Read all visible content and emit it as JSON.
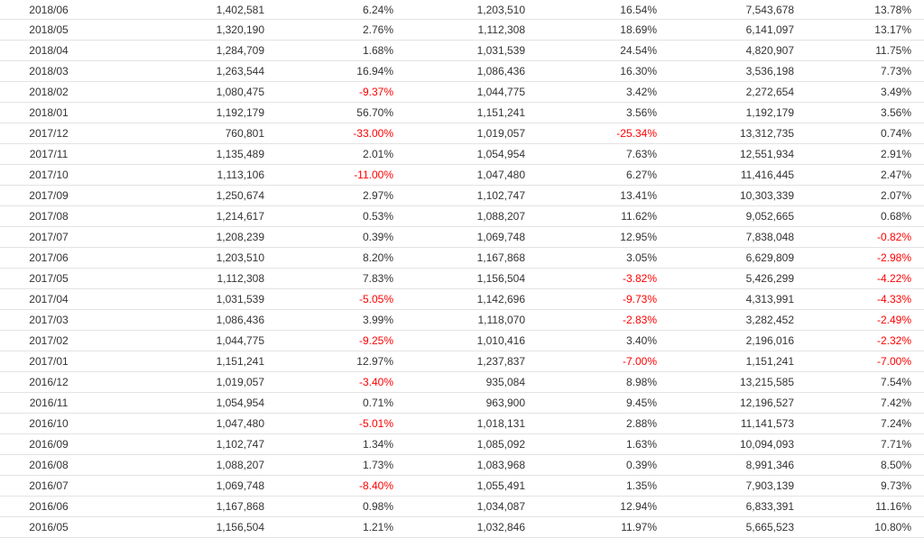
{
  "colors": {
    "negative": "#ff0000",
    "text": "#333333",
    "row_border": "#e3e3e3"
  },
  "table": {
    "rows": [
      [
        "2018/06",
        "1,402,581",
        "6.24%",
        "1,203,510",
        "16.54%",
        "7,543,678",
        "13.78%"
      ],
      [
        "2018/05",
        "1,320,190",
        "2.76%",
        "1,112,308",
        "18.69%",
        "6,141,097",
        "13.17%"
      ],
      [
        "2018/04",
        "1,284,709",
        "1.68%",
        "1,031,539",
        "24.54%",
        "4,820,907",
        "11.75%"
      ],
      [
        "2018/03",
        "1,263,544",
        "16.94%",
        "1,086,436",
        "16.30%",
        "3,536,198",
        "7.73%"
      ],
      [
        "2018/02",
        "1,080,475",
        "-9.37%",
        "1,044,775",
        "3.42%",
        "2,272,654",
        "3.49%"
      ],
      [
        "2018/01",
        "1,192,179",
        "56.70%",
        "1,151,241",
        "3.56%",
        "1,192,179",
        "3.56%"
      ],
      [
        "2017/12",
        "760,801",
        "-33.00%",
        "1,019,057",
        "-25.34%",
        "13,312,735",
        "0.74%"
      ],
      [
        "2017/11",
        "1,135,489",
        "2.01%",
        "1,054,954",
        "7.63%",
        "12,551,934",
        "2.91%"
      ],
      [
        "2017/10",
        "1,113,106",
        "-11.00%",
        "1,047,480",
        "6.27%",
        "11,416,445",
        "2.47%"
      ],
      [
        "2017/09",
        "1,250,674",
        "2.97%",
        "1,102,747",
        "13.41%",
        "10,303,339",
        "2.07%"
      ],
      [
        "2017/08",
        "1,214,617",
        "0.53%",
        "1,088,207",
        "11.62%",
        "9,052,665",
        "0.68%"
      ],
      [
        "2017/07",
        "1,208,239",
        "0.39%",
        "1,069,748",
        "12.95%",
        "7,838,048",
        "-0.82%"
      ],
      [
        "2017/06",
        "1,203,510",
        "8.20%",
        "1,167,868",
        "3.05%",
        "6,629,809",
        "-2.98%"
      ],
      [
        "2017/05",
        "1,112,308",
        "7.83%",
        "1,156,504",
        "-3.82%",
        "5,426,299",
        "-4.22%"
      ],
      [
        "2017/04",
        "1,031,539",
        "-5.05%",
        "1,142,696",
        "-9.73%",
        "4,313,991",
        "-4.33%"
      ],
      [
        "2017/03",
        "1,086,436",
        "3.99%",
        "1,118,070",
        "-2.83%",
        "3,282,452",
        "-2.49%"
      ],
      [
        "2017/02",
        "1,044,775",
        "-9.25%",
        "1,010,416",
        "3.40%",
        "2,196,016",
        "-2.32%"
      ],
      [
        "2017/01",
        "1,151,241",
        "12.97%",
        "1,237,837",
        "-7.00%",
        "1,151,241",
        "-7.00%"
      ],
      [
        "2016/12",
        "1,019,057",
        "-3.40%",
        "935,084",
        "8.98%",
        "13,215,585",
        "7.54%"
      ],
      [
        "2016/11",
        "1,054,954",
        "0.71%",
        "963,900",
        "9.45%",
        "12,196,527",
        "7.42%"
      ],
      [
        "2016/10",
        "1,047,480",
        "-5.01%",
        "1,018,131",
        "2.88%",
        "11,141,573",
        "7.24%"
      ],
      [
        "2016/09",
        "1,102,747",
        "1.34%",
        "1,085,092",
        "1.63%",
        "10,094,093",
        "7.71%"
      ],
      [
        "2016/08",
        "1,088,207",
        "1.73%",
        "1,083,968",
        "0.39%",
        "8,991,346",
        "8.50%"
      ],
      [
        "2016/07",
        "1,069,748",
        "-8.40%",
        "1,055,491",
        "1.35%",
        "7,903,139",
        "9.73%"
      ],
      [
        "2016/06",
        "1,167,868",
        "0.98%",
        "1,034,087",
        "12.94%",
        "6,833,391",
        "11.16%"
      ],
      [
        "2016/05",
        "1,156,504",
        "1.21%",
        "1,032,846",
        "11.97%",
        "5,665,523",
        "10.80%"
      ]
    ]
  }
}
